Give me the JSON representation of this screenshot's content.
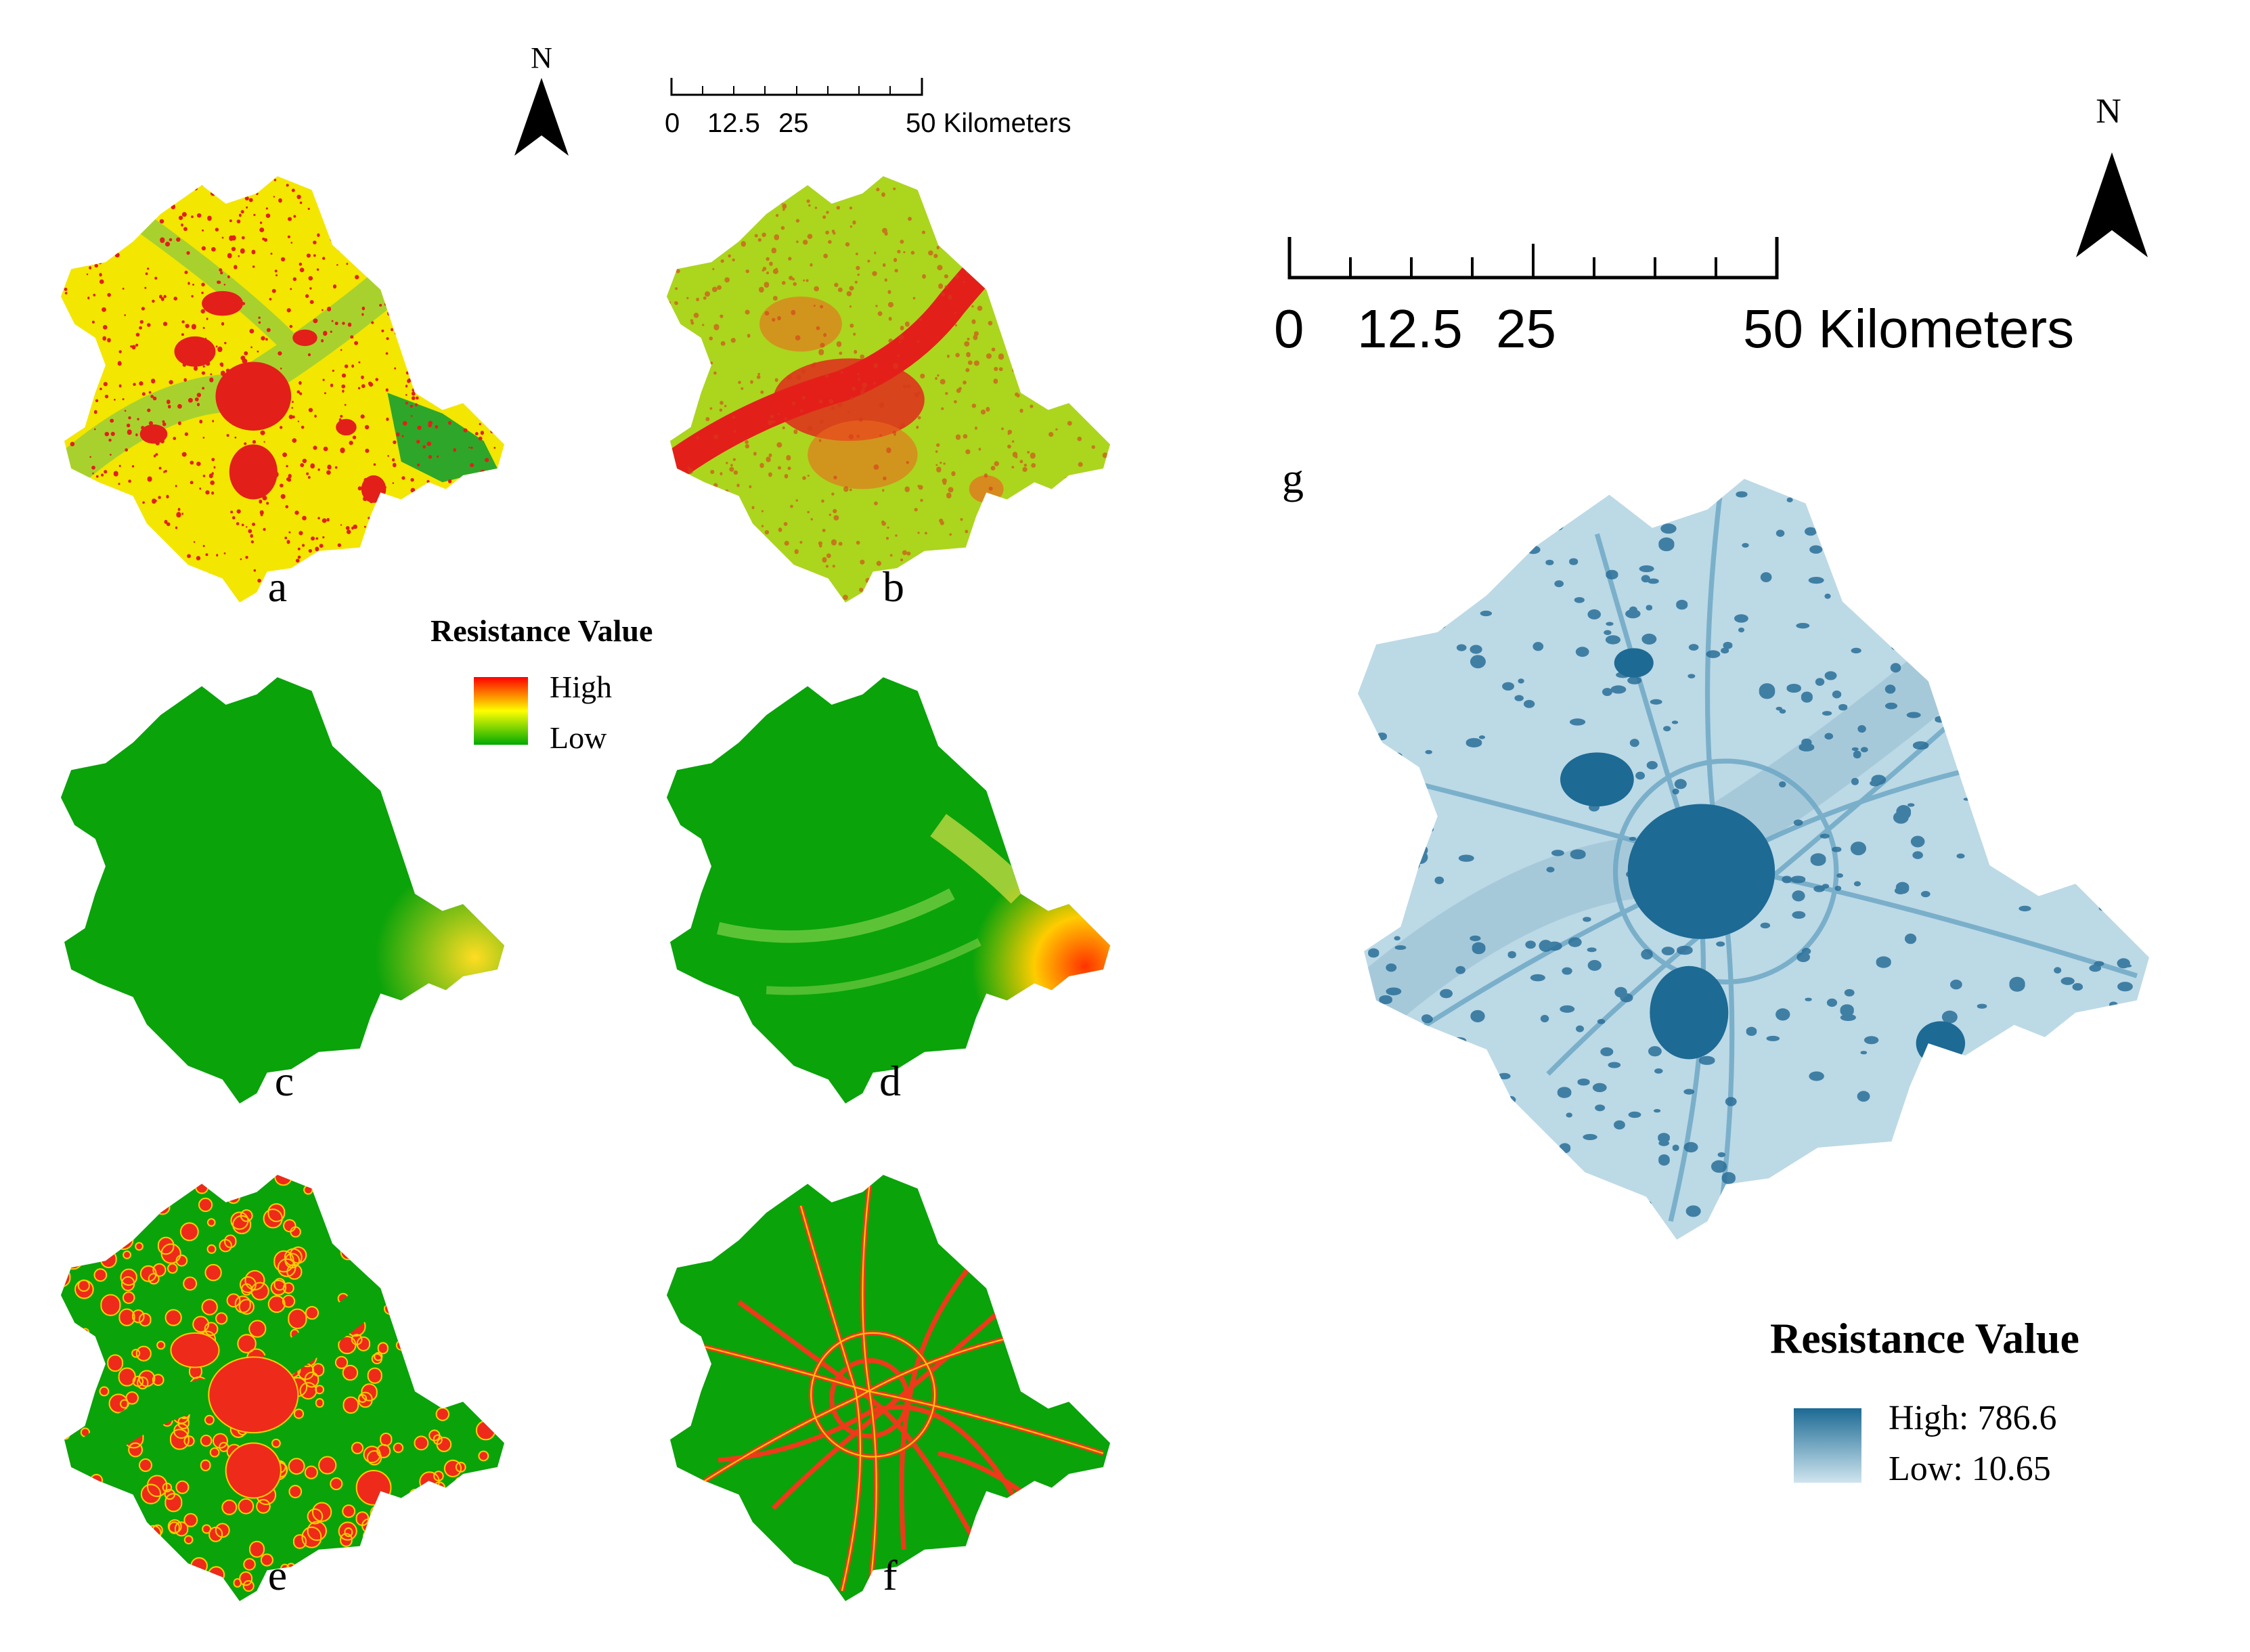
{
  "panels": {
    "a": {
      "label": "a",
      "scheme": "landuse"
    },
    "b": {
      "label": "b",
      "scheme": "mixed"
    },
    "c": {
      "label": "c",
      "scheme": "green-se"
    },
    "d": {
      "label": "d",
      "scheme": "green-se-strong"
    },
    "e": {
      "label": "e",
      "scheme": "patches"
    },
    "f": {
      "label": "f",
      "scheme": "roads"
    },
    "g": {
      "label": "g",
      "scheme": "blue-composite"
    }
  },
  "small_map": {
    "north_label": "N",
    "scale_ticks": [
      "0",
      "12.5",
      "25"
    ],
    "scale_end_label": "50 Kilometers",
    "legend": {
      "title": "Resistance Value",
      "high": "High",
      "low": "Low",
      "colors": [
        "#ff0000",
        "#ffff00",
        "#00aa00"
      ]
    }
  },
  "large_map": {
    "north_label": "N",
    "scale_ticks": [
      "0",
      "12.5",
      "25"
    ],
    "scale_end_label": "50 Kilometers",
    "legend": {
      "title": "Resistance Value",
      "high": "High: 786.6",
      "low": "Low: 10.65",
      "colors": [
        "#1c6a94",
        "#cfe5ef"
      ]
    }
  }
}
